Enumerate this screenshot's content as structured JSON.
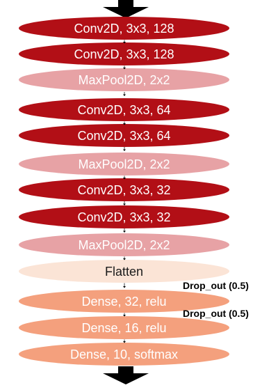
{
  "layers": [
    {
      "label": "Conv2D, 3x3, 128",
      "kind": "conv"
    },
    {
      "label": "Conv2D, 3x3, 128",
      "kind": "conv"
    },
    {
      "label": "MaxPool2D, 2x2",
      "kind": "pool"
    },
    {
      "label": "Conv2D, 3x3, 64",
      "kind": "conv"
    },
    {
      "label": "Conv2D, 3x3, 64",
      "kind": "conv"
    },
    {
      "label": "MaxPool2D, 2x2",
      "kind": "pool"
    },
    {
      "label": "Conv2D, 3x3, 32",
      "kind": "conv"
    },
    {
      "label": "Conv2D, 3x3, 32",
      "kind": "conv"
    },
    {
      "label": "MaxPool2D, 2x2",
      "kind": "pool"
    },
    {
      "label": "Flatten",
      "kind": "flatten"
    },
    {
      "label": "Dense, 32, relu",
      "kind": "dense"
    },
    {
      "label": "Dense, 16, relu",
      "kind": "dense"
    },
    {
      "label": "Dense, 10, softmax",
      "kind": "dense"
    }
  ],
  "dropouts": [
    {
      "label": "Drop_out (0.5)"
    },
    {
      "label": "Drop_out (0.5)"
    }
  ],
  "colors": {
    "conv": "#b20f16",
    "pool": "#e7a2a5",
    "flatten": "#fbe4d6",
    "dense": "#f4a07d",
    "arrow": "#000000"
  },
  "icons": {
    "input_arrow": "down-arrow-icon",
    "output_arrow": "down-arrow-icon",
    "connector": "small-down-arrow-icon"
  }
}
